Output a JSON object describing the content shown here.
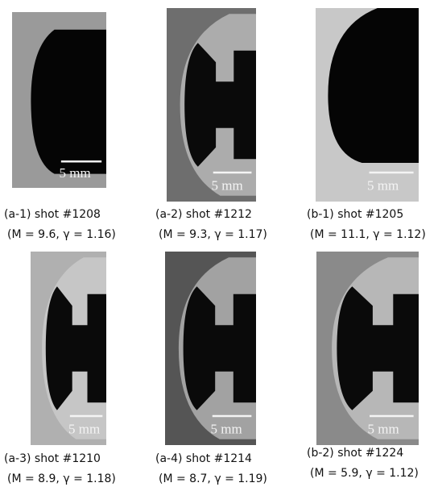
{
  "panels": [
    {
      "label": "(a-1) shot #1208",
      "params": "(M = 9.6, γ = 1.16)",
      "scale": "5 mm"
    },
    {
      "label": "(a-2) shot #1212",
      "params": "(M = 9.3, γ = 1.17)",
      "scale": "5 mm"
    },
    {
      "label": "(b-1) shot #1205",
      "params": "(M = 11.1, γ = 1.12)",
      "scale": "5 mm"
    },
    {
      "label": "(a-3) shot #1210",
      "params": "(M = 8.9, γ = 1.18)",
      "scale": "5 mm"
    },
    {
      "label": "(a-4) shot #1214",
      "params": "(M = 8.7, γ = 1.19)",
      "scale": "5 mm"
    },
    {
      "label": "(b-2) shot #1224",
      "params": "(M = 5.9, γ = 1.12)",
      "scale": "5 mm"
    }
  ]
}
